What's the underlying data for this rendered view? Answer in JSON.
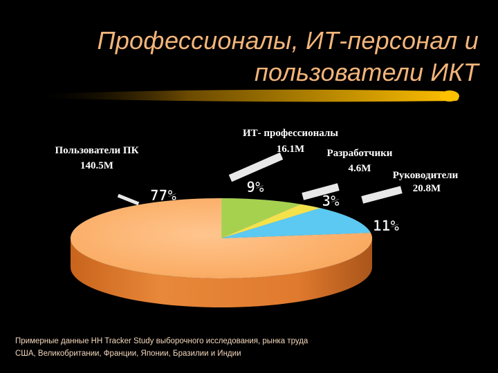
{
  "title": {
    "line1": "Профессионалы, ИТ-персонал и",
    "line2": "пользователи ИКТ"
  },
  "colors": {
    "background": "#000000",
    "title": "#F3B57A",
    "underline_gradient": [
      "#3A2600",
      "#FFC000"
    ],
    "label_text": "#FFFFFF",
    "percent_text": "#FFFFFF",
    "source_text": "#F5D9BE"
  },
  "chart_data": {
    "type": "pie",
    "style": "3d",
    "title": "",
    "slices": [
      {
        "name": "Пользователи ПК",
        "value_label": "140.5M",
        "value": 140.5,
        "percent_label": "77%",
        "color": "#F9A65A"
      },
      {
        "name": "ИТ- профессионалы",
        "value_label": "16.1M",
        "value": 16.1,
        "percent_label": "9%",
        "color": "#A6D14E"
      },
      {
        "name": "Разработчики",
        "value_label": "4.6M",
        "value": 4.6,
        "percent_label": "3%",
        "color": "#F4E24B"
      },
      {
        "name": "Руководители",
        "value_label": "20.8M",
        "value": 20.8,
        "percent_label": "11%",
        "color": "#5BC9F2"
      }
    ]
  },
  "source": {
    "line1": "Примерные данные HH Tracker Study выборочного исследования, рынка труда",
    "line2": "США, Великобритании, Франции, Японии, Бразилии  и Индии"
  }
}
